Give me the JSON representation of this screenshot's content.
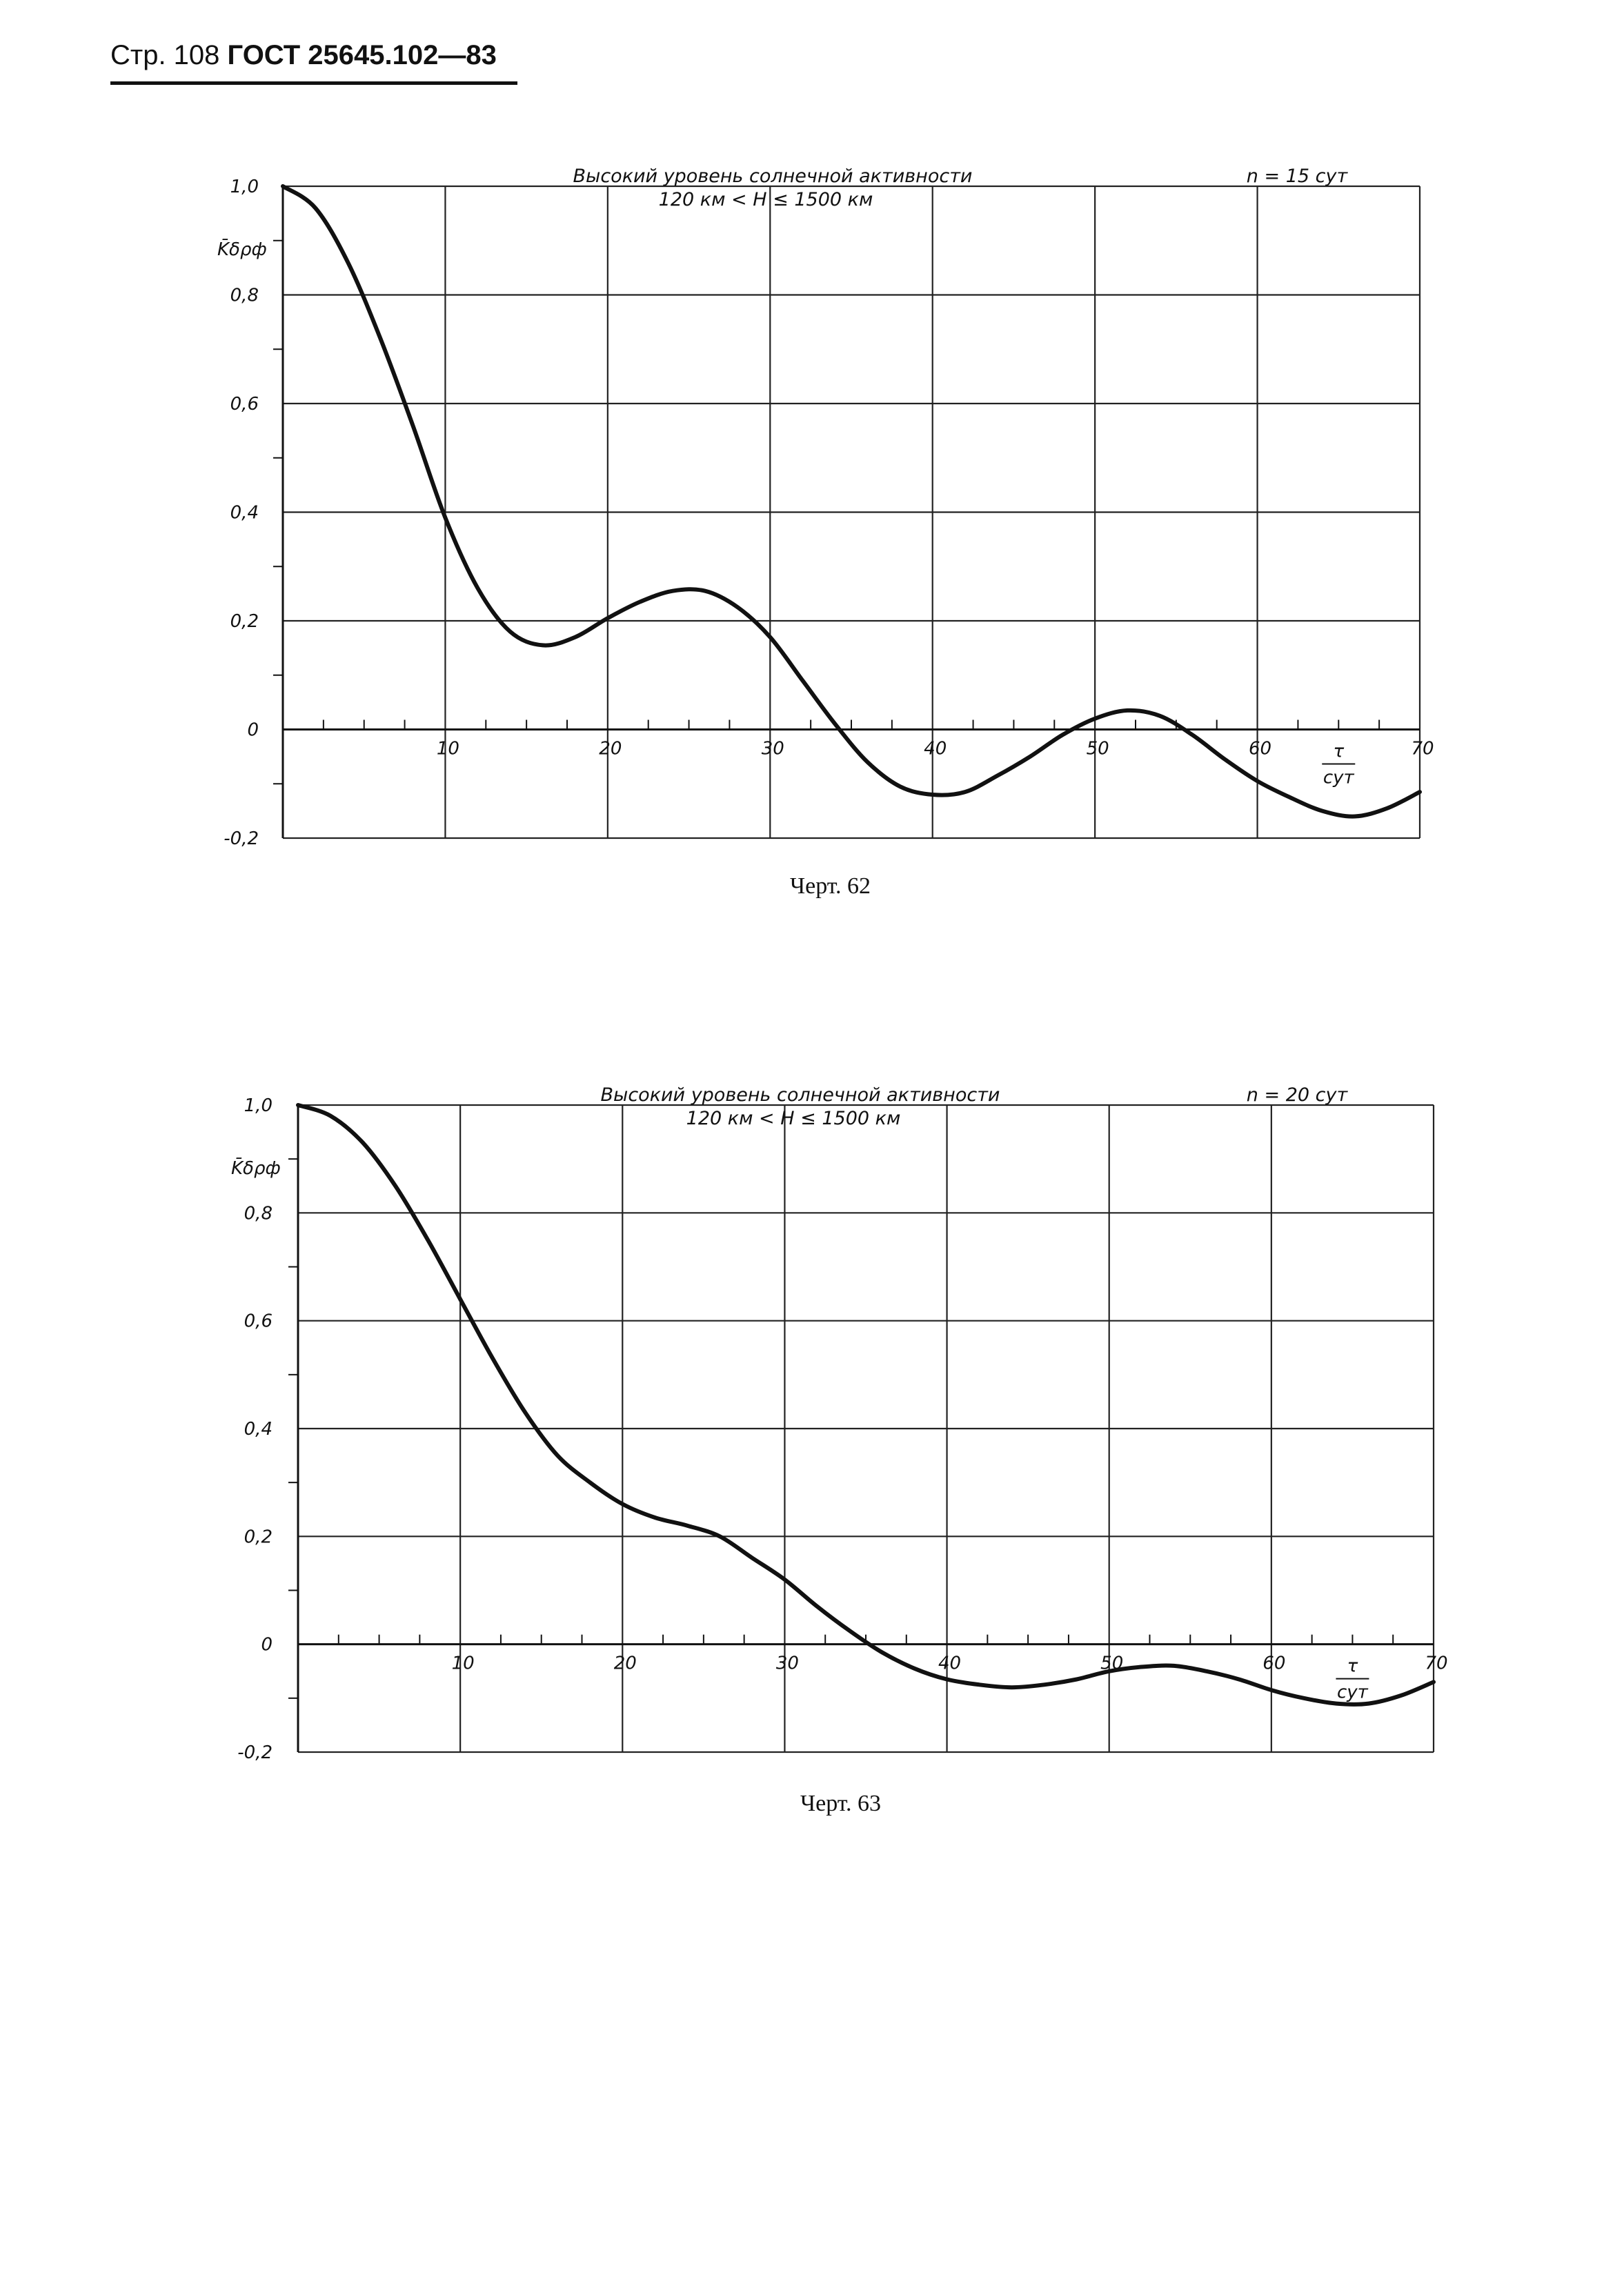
{
  "header": {
    "page": "Стр. 108",
    "standard": "ГОСТ 25645.102—83"
  },
  "chart_data": [
    {
      "type": "line",
      "title": "Высокий уровень солнечной активности",
      "subtitle": "120 км < H ≤ 1500 км",
      "note": "n = 15 сут",
      "ylabel": "K̄δρф",
      "xlabel_num": "τ",
      "xlabel_den": "сут",
      "caption": "Черт. 62",
      "xlim": [
        0,
        70
      ],
      "ylim": [
        -0.2,
        1.0
      ],
      "xticks": [
        "10",
        "20",
        "30",
        "40",
        "50",
        "60",
        "70"
      ],
      "yticks": [
        "1,0",
        "0,8",
        "0,6",
        "0,4",
        "0,2",
        "0",
        "-0,2"
      ],
      "grid": true,
      "series": [
        {
          "x": [
            0,
            2,
            4,
            6,
            8,
            10,
            12,
            14,
            16,
            18,
            20,
            22,
            24,
            26,
            28,
            30,
            32,
            34,
            36,
            38,
            40,
            42,
            44,
            46,
            48,
            50,
            52,
            54,
            56,
            58,
            60,
            62,
            64,
            66,
            68,
            70
          ],
          "values": [
            1.0,
            0.96,
            0.86,
            0.72,
            0.56,
            0.39,
            0.26,
            0.18,
            0.155,
            0.17,
            0.205,
            0.235,
            0.255,
            0.255,
            0.225,
            0.17,
            0.09,
            0.01,
            -0.06,
            -0.105,
            -0.12,
            -0.115,
            -0.085,
            -0.05,
            -0.01,
            0.02,
            0.035,
            0.025,
            -0.01,
            -0.055,
            -0.095,
            -0.125,
            -0.15,
            -0.16,
            -0.145,
            -0.115
          ]
        }
      ]
    },
    {
      "type": "line",
      "title": "Высокий уровень солнечной активности",
      "subtitle": "120 км < H ≤ 1500 км",
      "note": "n = 20 сут",
      "ylabel": "K̄δρф",
      "xlabel_num": "τ",
      "xlabel_den": "сут",
      "caption": "Черт. 63",
      "xlim": [
        0,
        70
      ],
      "ylim": [
        -0.2,
        1.0
      ],
      "xticks": [
        "10",
        "20",
        "30",
        "40",
        "50",
        "60",
        "70"
      ],
      "yticks": [
        "1,0",
        "0,8",
        "0,6",
        "0,4",
        "0,2",
        "0",
        "-0,2"
      ],
      "grid": true,
      "series": [
        {
          "x": [
            0,
            2,
            4,
            6,
            8,
            10,
            12,
            14,
            16,
            18,
            20,
            22,
            24,
            26,
            28,
            30,
            32,
            34,
            36,
            38,
            40,
            42,
            44,
            46,
            48,
            50,
            52,
            54,
            56,
            58,
            60,
            62,
            64,
            66,
            68,
            70
          ],
          "values": [
            1.0,
            0.98,
            0.93,
            0.85,
            0.75,
            0.64,
            0.53,
            0.43,
            0.35,
            0.3,
            0.26,
            0.235,
            0.22,
            0.2,
            0.16,
            0.12,
            0.07,
            0.025,
            -0.015,
            -0.045,
            -0.065,
            -0.075,
            -0.08,
            -0.075,
            -0.065,
            -0.05,
            -0.042,
            -0.04,
            -0.05,
            -0.065,
            -0.085,
            -0.1,
            -0.11,
            -0.11,
            -0.095,
            -0.07
          ]
        }
      ]
    }
  ]
}
